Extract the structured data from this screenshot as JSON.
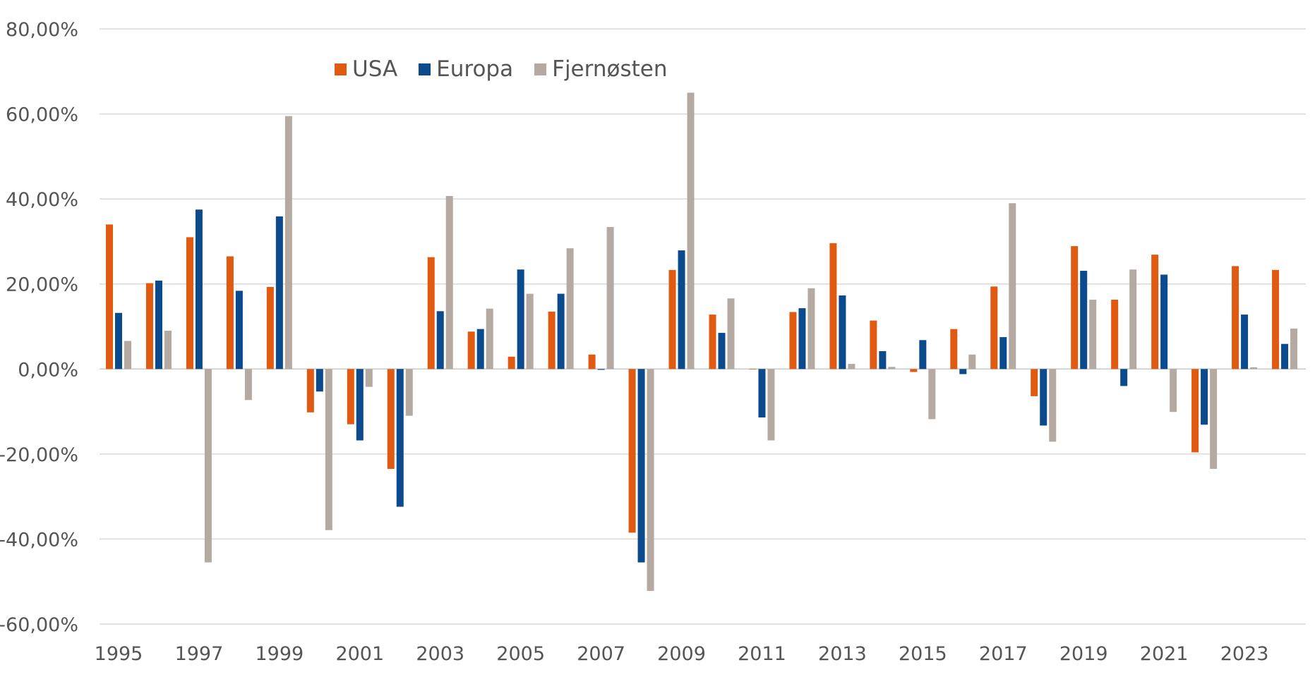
{
  "chart_data": {
    "type": "bar",
    "title": "",
    "xlabel": "",
    "ylabel": "",
    "ylim": [
      -60,
      80
    ],
    "yticks": [
      "80,00%",
      "60,00%",
      "40,00%",
      "20,00%",
      "0,00%",
      "-20,00%",
      "-40,00%",
      "-60,00%"
    ],
    "ytick_values": [
      80,
      60,
      40,
      20,
      0,
      -20,
      -40,
      -60
    ],
    "categories": [
      "1995",
      "1996",
      "1997",
      "1998",
      "1999",
      "2000",
      "2001",
      "2002",
      "2003",
      "2004",
      "2005",
      "2006",
      "2007",
      "2008",
      "2009",
      "2010",
      "2011",
      "2012",
      "2013",
      "2014",
      "2015",
      "2016",
      "2017",
      "2018",
      "2019",
      "2020",
      "2021",
      "2022",
      "2023",
      "2024"
    ],
    "xtick_labels": [
      "1995",
      "1997",
      "1999",
      "2001",
      "2003",
      "2005",
      "2007",
      "2009",
      "2011",
      "2013",
      "2015",
      "2017",
      "2019",
      "2021",
      "2023"
    ],
    "grid": true,
    "legend_position": "top",
    "series": [
      {
        "name": "USA",
        "color": "#E05A12",
        "values": [
          34.0,
          20.2,
          31.0,
          26.5,
          19.3,
          -10.2,
          -13.0,
          -23.5,
          26.3,
          8.8,
          2.9,
          13.5,
          3.4,
          -38.5,
          23.3,
          12.8,
          -0.1,
          13.4,
          29.6,
          11.4,
          -0.7,
          9.4,
          19.4,
          -6.4,
          28.9,
          16.3,
          26.9,
          -19.6,
          24.2,
          23.3
        ]
      },
      {
        "name": "Europa",
        "color": "#0B4A8C",
        "values": [
          13.2,
          20.8,
          37.5,
          18.4,
          35.9,
          -5.3,
          -16.8,
          -32.4,
          13.6,
          9.4,
          23.4,
          17.7,
          -0.2,
          -45.5,
          27.9,
          8.5,
          -11.4,
          14.3,
          17.3,
          4.2,
          6.8,
          -1.2,
          7.5,
          -13.3,
          23.1,
          -4.0,
          22.2,
          -13.1,
          12.8,
          5.9
        ]
      },
      {
        "name": "Fjernøsten",
        "color": "#B5AAA1",
        "values": [
          6.6,
          9.0,
          -45.5,
          -7.3,
          59.5,
          -37.9,
          -4.2,
          -11.0,
          40.7,
          14.2,
          17.7,
          28.4,
          33.4,
          -52.2,
          65.0,
          16.6,
          -16.8,
          19.0,
          1.2,
          0.5,
          -11.8,
          3.4,
          39.0,
          -17.1,
          16.3,
          23.4,
          -10.1,
          -23.5,
          0.4,
          9.5
        ]
      }
    ]
  }
}
